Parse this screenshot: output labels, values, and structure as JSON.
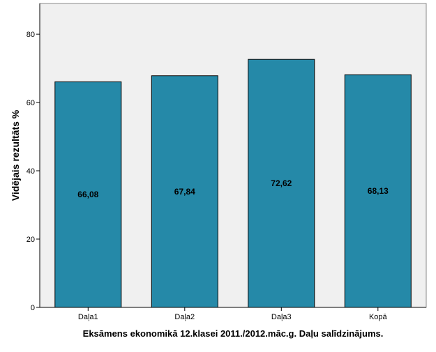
{
  "chart_data": {
    "type": "bar",
    "categories": [
      "Daļa1",
      "Daļa2",
      "Daļa3",
      "Kopā"
    ],
    "values": [
      66.08,
      67.84,
      72.62,
      68.13
    ],
    "value_labels": [
      "66,08",
      "67,84",
      "72,62",
      "68,13"
    ],
    "title": "",
    "xlabel": "Eksāmens ekonomikā 12.klasei 2011./2012.māc.g. Daļu salīdzinājums.",
    "ylabel": "Vidējais rezultāts %",
    "ylim": [
      0,
      89
    ],
    "yticks": [
      0,
      20,
      40,
      60,
      80
    ],
    "grid": false,
    "legend": "none",
    "colors": {
      "bar_fill": "#2589a8",
      "bar_stroke": "#000000",
      "plot_background": "#f0f0f0",
      "page_background": "#ffffff",
      "axis": "#000000",
      "text": "#000000"
    }
  }
}
